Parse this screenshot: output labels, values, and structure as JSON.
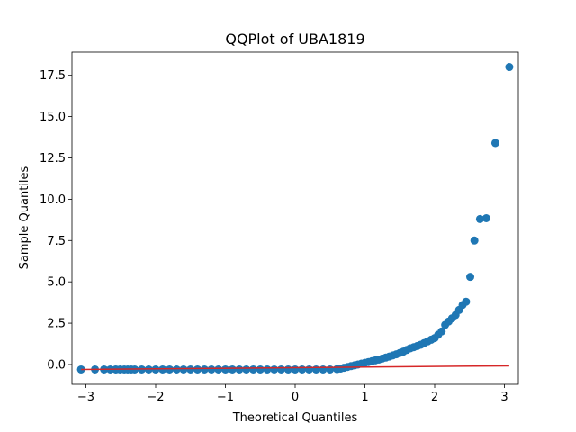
{
  "chart_data": {
    "type": "scatter",
    "title": "QQPlot of UBA1819",
    "xlabel": "Theoretical Quantiles",
    "ylabel": "Sample Quantiles",
    "xlim": [
      -3.2,
      3.2
    ],
    "ylim": [
      -1.2,
      18.9
    ],
    "xticks": [
      -3,
      -2,
      -1,
      0,
      1,
      2,
      3
    ],
    "xtick_labels": [
      "−3",
      "−2",
      "−1",
      "0",
      "1",
      "2",
      "3"
    ],
    "yticks": [
      0.0,
      2.5,
      5.0,
      7.5,
      10.0,
      12.5,
      15.0,
      17.5
    ],
    "ytick_labels": [
      "0.0",
      "2.5",
      "5.0",
      "7.5",
      "10.0",
      "12.5",
      "15.0",
      "17.5"
    ],
    "grid": false,
    "legend": "none",
    "colors": {
      "points": "#1f77b4",
      "reference_line": "#d62728"
    },
    "series": [
      {
        "type": "scatter",
        "x": [
          -3.07,
          -2.87,
          -2.74,
          -2.65,
          -2.57,
          -2.51,
          -2.45,
          -2.4,
          -2.35,
          -2.3,
          -2.2,
          -2.1,
          -2.0,
          -1.9,
          -1.8,
          -1.7,
          -1.6,
          -1.5,
          -1.4,
          -1.3,
          -1.2,
          -1.1,
          -1.0,
          -0.9,
          -0.8,
          -0.7,
          -0.6,
          -0.5,
          -0.4,
          -0.3,
          -0.2,
          -0.1,
          0.0,
          0.1,
          0.2,
          0.3,
          0.4,
          0.5,
          0.6,
          0.65,
          0.7,
          0.75,
          0.8,
          0.85,
          0.9,
          0.95,
          1.0,
          1.05,
          1.1,
          1.15,
          1.2,
          1.25,
          1.3,
          1.35,
          1.4,
          1.45,
          1.5,
          1.55,
          1.6,
          1.65,
          1.7,
          1.75,
          1.8,
          1.85,
          1.9,
          1.95,
          2.0,
          2.05,
          2.1,
          2.15,
          2.2,
          2.25,
          2.3,
          2.35,
          2.4,
          2.45,
          2.51,
          2.57,
          2.65,
          2.74,
          2.87,
          3.07
        ],
        "y": [
          -0.3,
          -0.3,
          -0.3,
          -0.3,
          -0.3,
          -0.3,
          -0.3,
          -0.3,
          -0.3,
          -0.3,
          -0.3,
          -0.3,
          -0.3,
          -0.3,
          -0.3,
          -0.3,
          -0.3,
          -0.3,
          -0.3,
          -0.3,
          -0.3,
          -0.3,
          -0.3,
          -0.3,
          -0.3,
          -0.3,
          -0.3,
          -0.3,
          -0.3,
          -0.3,
          -0.3,
          -0.3,
          -0.3,
          -0.3,
          -0.3,
          -0.3,
          -0.3,
          -0.3,
          -0.28,
          -0.25,
          -0.2,
          -0.15,
          -0.1,
          -0.05,
          0.0,
          0.05,
          0.1,
          0.15,
          0.2,
          0.25,
          0.3,
          0.36,
          0.42,
          0.48,
          0.55,
          0.62,
          0.7,
          0.78,
          0.88,
          0.98,
          1.05,
          1.12,
          1.2,
          1.3,
          1.4,
          1.5,
          1.6,
          1.8,
          2.0,
          2.4,
          2.6,
          2.8,
          3.0,
          3.3,
          3.6,
          3.8,
          5.3,
          7.5,
          8.8,
          8.85,
          13.4,
          18.0
        ]
      },
      {
        "type": "line",
        "x": [
          -3.07,
          3.07
        ],
        "y": [
          -0.3,
          -0.08
        ]
      }
    ]
  }
}
